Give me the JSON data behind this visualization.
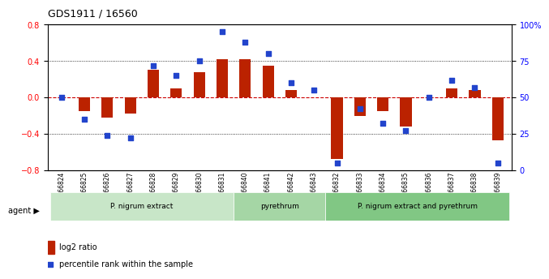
{
  "title": "GDS1911 / 16560",
  "samples": [
    "GSM66824",
    "GSM66825",
    "GSM66826",
    "GSM66827",
    "GSM66828",
    "GSM66829",
    "GSM66830",
    "GSM66831",
    "GSM66840",
    "GSM66841",
    "GSM66842",
    "GSM66843",
    "GSM66832",
    "GSM66833",
    "GSM66834",
    "GSM66835",
    "GSM66836",
    "GSM66837",
    "GSM66838",
    "GSM66839"
  ],
  "log2_ratio": [
    0.0,
    -0.15,
    -0.22,
    -0.18,
    0.3,
    0.1,
    0.28,
    0.42,
    0.42,
    0.35,
    0.08,
    0.0,
    -0.68,
    -0.2,
    -0.15,
    -0.32,
    0.0,
    0.1,
    0.08,
    -0.47
  ],
  "percentile": [
    50,
    35,
    24,
    22,
    72,
    65,
    75,
    95,
    88,
    80,
    60,
    55,
    5,
    42,
    32,
    27,
    50,
    62,
    57,
    5
  ],
  "groups": [
    {
      "label": "P. nigrum extract",
      "start": 0,
      "end": 8,
      "color": "#aaddaa"
    },
    {
      "label": "pyrethrum",
      "start": 8,
      "end": 12,
      "color": "#88cc88"
    },
    {
      "label": "P. nigrum extract and pyrethrum",
      "start": 12,
      "end": 20,
      "color": "#66bb66"
    }
  ],
  "ylim": [
    -0.8,
    0.8
  ],
  "y2lim": [
    0,
    100
  ],
  "bar_color": "#bb2200",
  "dot_color": "#2244cc",
  "background_color": "#f0f0f0",
  "grid_color": "#000000",
  "zero_line_color": "#cc0000"
}
